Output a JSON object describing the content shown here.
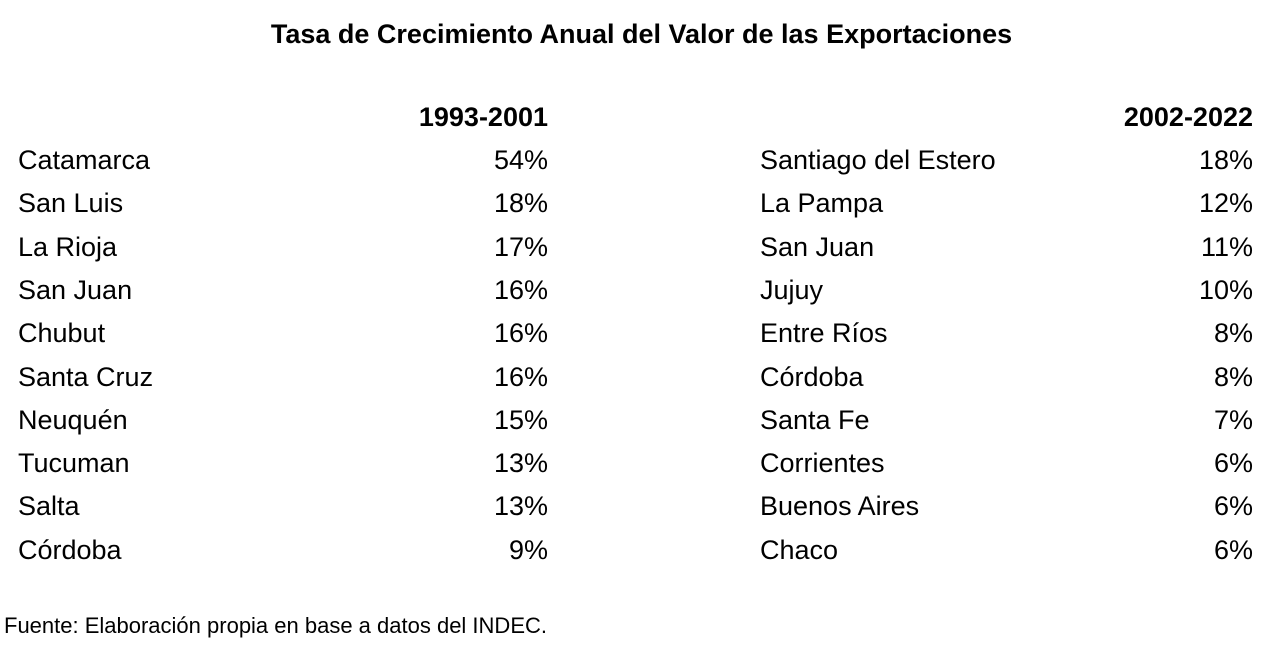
{
  "chart_data": {
    "type": "table",
    "title": "Tasa de Crecimiento Anual del Valor de las Exportaciones",
    "tables": [
      {
        "period": "1993-2001",
        "rows": [
          {
            "province": "Catamarca",
            "value": "54%"
          },
          {
            "province": "San Luis",
            "value": "18%"
          },
          {
            "province": "La Rioja",
            "value": "17%"
          },
          {
            "province": "San Juan",
            "value": "16%"
          },
          {
            "province": "Chubut",
            "value": "16%"
          },
          {
            "province": "Santa Cruz",
            "value": "16%"
          },
          {
            "province": "Neuquén",
            "value": "15%"
          },
          {
            "province": "Tucuman",
            "value": "13%"
          },
          {
            "province": "Salta",
            "value": "13%"
          },
          {
            "province": "Córdoba",
            "value": "9%"
          }
        ]
      },
      {
        "period": "2002-2022",
        "rows": [
          {
            "province": "Santiago del Estero",
            "value": "18%"
          },
          {
            "province": "La Pampa",
            "value": "12%"
          },
          {
            "province": "San Juan",
            "value": "11%"
          },
          {
            "province": "Jujuy",
            "value": "10%"
          },
          {
            "province": "Entre Ríos",
            "value": "8%"
          },
          {
            "province": "Córdoba",
            "value": "8%"
          },
          {
            "province": "Santa Fe",
            "value": "7%"
          },
          {
            "province": "Corrientes",
            "value": "6%"
          },
          {
            "province": "Buenos Aires",
            "value": "6%"
          },
          {
            "province": "Chaco",
            "value": "6%"
          }
        ]
      }
    ],
    "source": "Fuente: Elaboración propia en base a datos del INDEC."
  }
}
